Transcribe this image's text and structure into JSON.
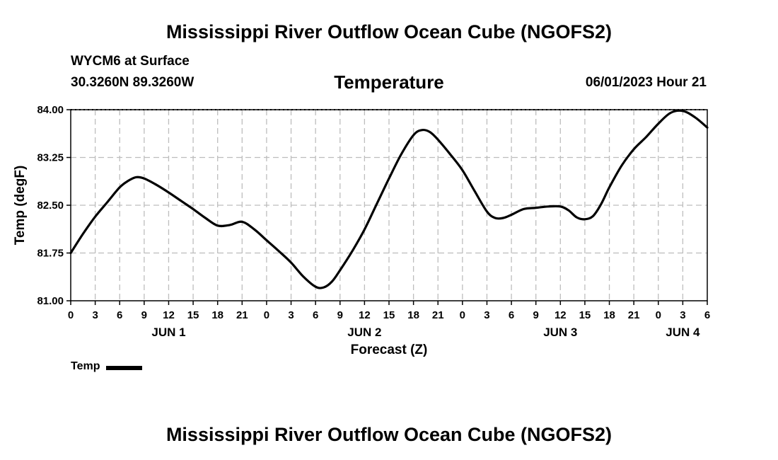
{
  "page": {
    "title": "Mississippi River Outflow Ocean Cube (NGOFS2)",
    "station": "WYCM6 at Surface",
    "coordinates": "30.3260N  89.3260W",
    "variable": "Temperature",
    "datetime": "06/01/2023 Hour 21",
    "footer_title": "Mississippi River Outflow Ocean Cube (NGOFS2)"
  },
  "legend": {
    "label": "Temp"
  },
  "colors": {
    "line": "#000000",
    "grid": "#bdbdbd",
    "background": "#ffffff"
  },
  "chart_data": {
    "type": "line",
    "title": "Temperature",
    "xlabel": "Forecast (Z)",
    "ylabel": "Temp (degF)",
    "ylim": [
      81.0,
      84.0
    ],
    "yticks": [
      "81.00",
      "81.75",
      "82.50",
      "83.25",
      "84.00"
    ],
    "xlim": [
      0,
      78
    ],
    "xtick_labels": [
      "0",
      "3",
      "6",
      "9",
      "12",
      "15",
      "18",
      "21",
      "0",
      "3",
      "6",
      "9",
      "12",
      "15",
      "18",
      "21",
      "0",
      "3",
      "6",
      "9",
      "12",
      "15",
      "18",
      "21",
      "0",
      "3",
      "6"
    ],
    "day_labels": [
      {
        "label": "JUN 1",
        "hour": 12
      },
      {
        "label": "JUN 2",
        "hour": 36
      },
      {
        "label": "JUN 3",
        "hour": 60
      },
      {
        "label": "JUN 4",
        "hour": 75
      }
    ],
    "grid": true,
    "legend_position": "bottom-left",
    "series": [
      {
        "name": "Temp",
        "x": [
          0,
          1.5,
          3,
          4.5,
          6,
          7,
          8,
          9,
          10.5,
          12,
          13.5,
          15,
          16.5,
          18,
          19.5,
          21,
          22.5,
          24,
          25.5,
          27,
          28.5,
          30,
          31,
          32,
          33,
          34.5,
          36,
          37.5,
          39,
          40.5,
          42,
          43,
          44,
          45,
          46.5,
          48,
          49.5,
          51,
          52,
          53,
          54,
          55.5,
          57,
          58.5,
          60,
          61,
          62,
          63,
          64,
          65,
          66,
          67.5,
          69,
          70.5,
          72,
          73.5,
          75,
          76.5,
          78
        ],
        "values": [
          81.75,
          82.05,
          82.32,
          82.55,
          82.78,
          82.88,
          82.94,
          82.92,
          82.82,
          82.7,
          82.57,
          82.44,
          82.3,
          82.18,
          82.19,
          82.24,
          82.12,
          81.95,
          81.78,
          81.6,
          81.38,
          81.22,
          81.21,
          81.3,
          81.48,
          81.78,
          82.12,
          82.52,
          82.92,
          83.3,
          83.6,
          83.68,
          83.65,
          83.53,
          83.3,
          83.05,
          82.72,
          82.4,
          82.3,
          82.3,
          82.35,
          82.44,
          82.46,
          82.48,
          82.48,
          82.42,
          82.31,
          82.28,
          82.33,
          82.52,
          82.78,
          83.12,
          83.38,
          83.57,
          83.78,
          83.95,
          83.98,
          83.88,
          83.72
        ]
      }
    ]
  }
}
